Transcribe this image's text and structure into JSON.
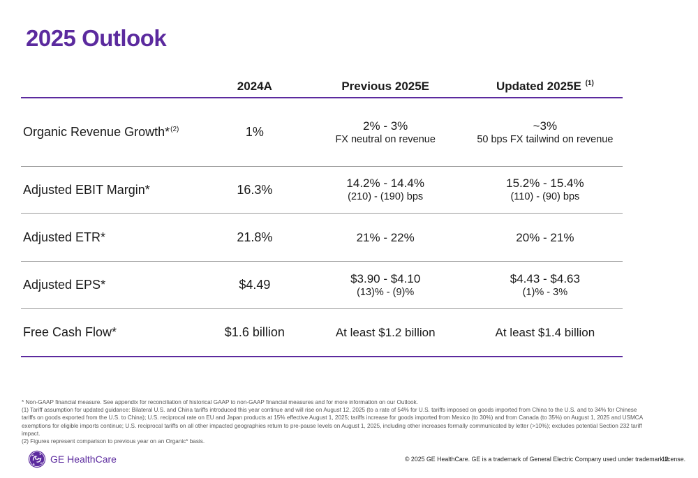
{
  "title": "2025 Outlook",
  "table": {
    "headers": [
      "2024A",
      "Previous 2025E",
      "Updated 2025E",
      "(1)"
    ],
    "rows": [
      {
        "metric": "Organic Revenue Growth*",
        "metric_sup": "(2)",
        "a2024": "1%",
        "prev_main": "2% - 3%",
        "prev_sub": "FX neutral on revenue",
        "upd_main": "~3%",
        "upd_sub": "50 bps FX tailwind on revenue"
      },
      {
        "metric": "Adjusted EBIT Margin*",
        "a2024": "16.3%",
        "prev_main": "14.2% - 14.4%",
        "prev_sub": "(210) - (190) bps",
        "upd_main": "15.2% - 15.4%",
        "upd_sub": "(110) - (90) bps"
      },
      {
        "metric": "Adjusted ETR*",
        "a2024": "21.8%",
        "prev_main": "21% - 22%",
        "upd_main": "20% - 21%"
      },
      {
        "metric": "Adjusted EPS*",
        "a2024": "$4.49",
        "prev_main": "$3.90 - $4.10",
        "prev_sub": "(13)% - (9)%",
        "upd_main": "$4.43 - $4.63",
        "upd_sub": "(1)% - 3%"
      },
      {
        "metric": "Free Cash Flow*",
        "a2024": "$1.6 billion",
        "prev_main": "At least $1.2 billion",
        "upd_main": "At least $1.4 billion"
      }
    ]
  },
  "footnotes": [
    "* Non-GAAP financial measure. See appendix for reconciliation of historical GAAP to non-GAAP financial measures and for more information on our Outlook.",
    "(1) Tariff assumption for updated guidance: Bilateral U.S. and China tariffs introduced this year continue and will rise on August 12, 2025 (to a rate of 54% for U.S. tariffs imposed on goods imported from China to the U.S. and to 34% for Chinese tariffs on goods exported from the U.S. to China); U.S. reciprocal rate on EU and Japan products at 15% effective August 1, 2025; tariffs increase for goods imported from Mexico (to 30%) and from Canada (to 35%) on August 1, 2025 and USMCA exemptions for eligible imports continue; U.S. reciprocal tariffs on all other impacted geographies return to pre-pause levels on August 1, 2025, including other increases formally communicated by letter (>10%); excludes potential Section 232 tariff impact.",
    "(2) Figures represent comparison to previous year on an Organic* basis."
  ],
  "footer": {
    "logo_text": "GE HealthCare",
    "copyright": "© 2025 GE HealthCare. GE is a trademark of General Electric Company used under trademark license.",
    "page_number": "12"
  },
  "colors": {
    "accent": "#5b2a9e",
    "row_divider": "#9a9a9a"
  },
  "icons": {
    "logo": "ge-monogram-icon"
  }
}
